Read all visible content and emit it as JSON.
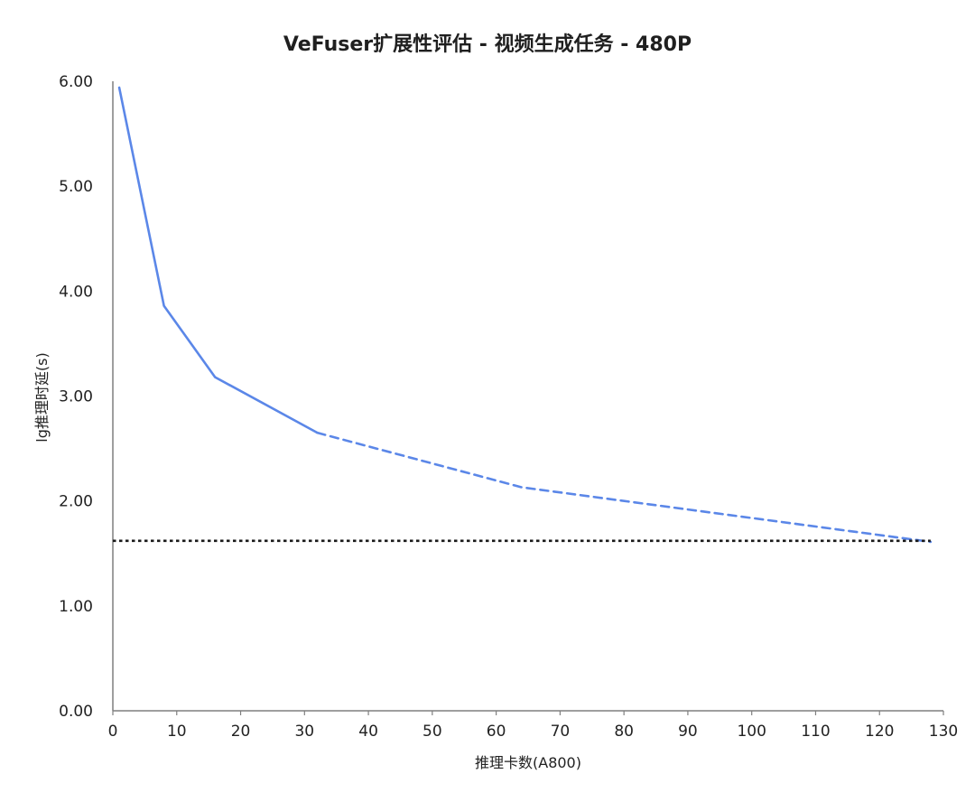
{
  "chart_data": {
    "type": "line",
    "title": "VeFuser扩展性评估 - 视频生成任务 - 480P",
    "xlabel": "推理卡数(A800)",
    "ylabel": "lg推理时延(s)",
    "xlim": [
      0,
      130
    ],
    "ylim": [
      0,
      6
    ],
    "x_ticks": [
      0,
      10,
      20,
      30,
      40,
      50,
      60,
      70,
      80,
      90,
      100,
      110,
      120,
      130
    ],
    "y_ticks": [
      "0.00",
      "1.00",
      "2.00",
      "3.00",
      "4.00",
      "5.00",
      "6.00"
    ],
    "grid": false,
    "legend": "none",
    "colors": {
      "series": "#5b87e8",
      "reference": "#1a1a1a"
    },
    "series": [
      {
        "style": "solid",
        "x": [
          1,
          8,
          16,
          32
        ],
        "y": [
          5.94,
          3.86,
          3.18,
          2.65
        ]
      },
      {
        "style": "dashed",
        "x": [
          32,
          64,
          128
        ],
        "y": [
          2.65,
          2.13,
          1.61
        ]
      },
      {
        "style": "dotted",
        "x": [
          0,
          128
        ],
        "y": [
          1.62,
          1.62
        ]
      }
    ]
  }
}
